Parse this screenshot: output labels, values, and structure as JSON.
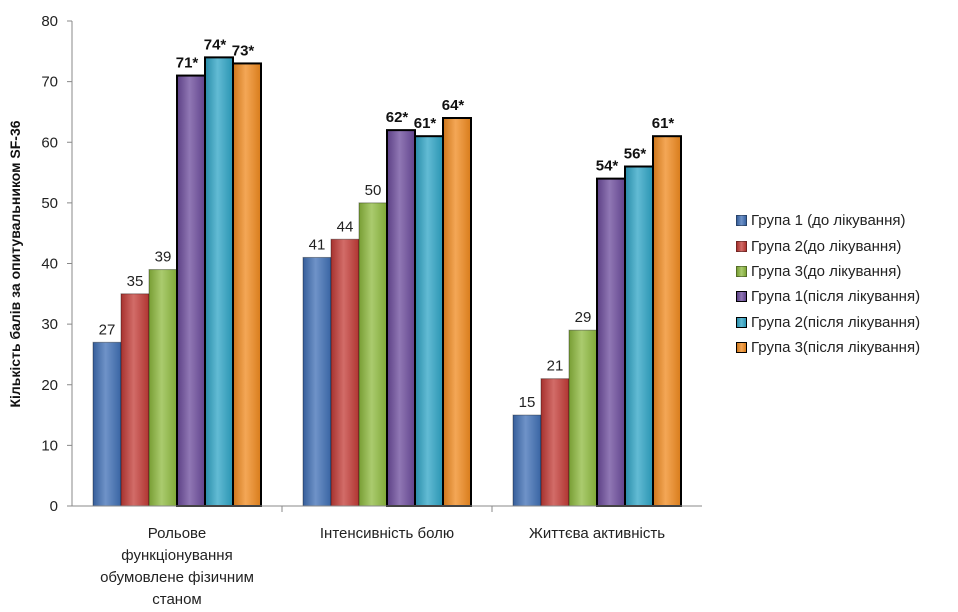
{
  "chart_data": {
    "type": "bar",
    "categories": [
      [
        "Рольове",
        "функціонування",
        "обумовлене фізичним",
        "станом"
      ],
      [
        "Інтенсивність болю"
      ],
      [
        "Життєва активність"
      ]
    ],
    "ylabel": "Кількість балів за опитувальником SF-36",
    "ylim": [
      0,
      80
    ],
    "yticks": [
      "0",
      "10",
      "20",
      "30",
      "40",
      "50",
      "60",
      "70",
      "80"
    ],
    "grid": false,
    "legend_position": "right",
    "series": [
      {
        "name": "Група 1 (до лікування)",
        "color": "#3f6fb5",
        "values": [
          27,
          41,
          15
        ],
        "labels": [
          "27",
          "41",
          "15"
        ],
        "bold": false
      },
      {
        "name": "Група 2(до лікування)",
        "color": "#c33b36",
        "values": [
          35,
          44,
          21
        ],
        "labels": [
          "35",
          "44",
          "21"
        ],
        "bold": false
      },
      {
        "name": "Група 3(до лікування)",
        "color": "#8dba3d",
        "values": [
          39,
          50,
          29
        ],
        "labels": [
          "39",
          "50",
          "29"
        ],
        "bold": false
      },
      {
        "name": "Група 1(після лікування)",
        "color": "#6b4a9b",
        "values": [
          71,
          62,
          54
        ],
        "labels": [
          "71*",
          "62*",
          "54*"
        ],
        "bold": true
      },
      {
        "name": "Група 2(після лікування)",
        "color": "#2ea4c6",
        "values": [
          74,
          61,
          56
        ],
        "labels": [
          "74*",
          "61*",
          "56*"
        ],
        "bold": true
      },
      {
        "name": "Група 3(після лікування)",
        "color": "#f08a1e",
        "values": [
          73,
          64,
          61
        ],
        "labels": [
          "73*",
          "64*",
          "61*"
        ],
        "bold": true
      }
    ]
  }
}
